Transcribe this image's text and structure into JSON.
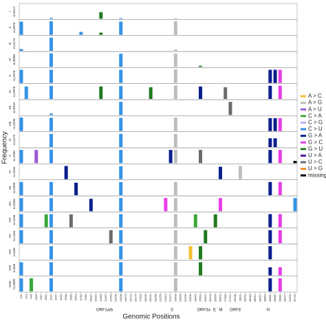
{
  "chart_data": {
    "type": "mutation-panels",
    "xlabel": "Genomic Positions",
    "ylabel": "Frequency",
    "ylim": [
      0,
      1
    ],
    "x": [
      241,
      313,
      445,
      1059,
      1397,
      2891,
      3037,
      3267,
      4002,
      5388,
      5986,
      6954,
      8782,
      9286,
      10097,
      10319,
      11083,
      11287,
      12053,
      13536,
      14408,
      14676,
      15279,
      16176,
      17259,
      18028,
      19542,
      20268,
      21255,
      21614,
      22227,
      23403,
      23604,
      23709,
      24506,
      24642,
      25563,
      25907,
      26144,
      26456,
      26801,
      27389,
      27972,
      28048,
      28111,
      28169,
      28280,
      28512,
      28657,
      28854,
      28881,
      28882,
      28883,
      28977,
      29402,
      29742
    ],
    "genes": [
      "ORF1a/b",
      "S",
      "ORF3a",
      "E",
      "M",
      "ORF8",
      "N"
    ],
    "series": [
      {
        "name": "A > C",
        "color": "#f2c12e"
      },
      {
        "name": "A > G",
        "color": "#bdbdbd"
      },
      {
        "name": "A > U",
        "color": "#9b59d0"
      },
      {
        "name": "C > A",
        "color": "#3aa83a"
      },
      {
        "name": "C > G",
        "color": "#b9b0f0"
      },
      {
        "name": "C > U",
        "color": "#3393e6"
      },
      {
        "name": "G > A",
        "color": "#0b1f8c"
      },
      {
        "name": "G > C",
        "color": "#e83ee8"
      },
      {
        "name": "G > U",
        "color": "#217a21"
      },
      {
        "name": "U > A",
        "color": "#4b1a9e"
      },
      {
        "name": "U > C",
        "color": "#6b6b6b"
      },
      {
        "name": "U > G",
        "color": "#f58a1f"
      },
      {
        "name": "missing",
        "color": "#000000"
      }
    ],
    "panels": [
      {
        "label": "I",
        "n": "n=8117",
        "bars": [
          {
            "pos": 11083,
            "mut": "G > U",
            "value": 0.45
          },
          {
            "pos": 3037,
            "mut": "C > U",
            "value": 0.06
          },
          {
            "pos": 23403,
            "mut": "A > G",
            "value": 0.05
          },
          {
            "pos": 14408,
            "mut": "C > U",
            "value": 0.05
          }
        ]
      },
      {
        "label": "II",
        "n": "n=6976",
        "bars": [
          {
            "pos": 241,
            "mut": "C > U",
            "value": 0.9
          },
          {
            "pos": 3037,
            "mut": "C > U",
            "value": 0.92
          },
          {
            "pos": 14408,
            "mut": "C > U",
            "value": 0.9
          },
          {
            "pos": 23403,
            "mut": "A > G",
            "value": 0.92
          },
          {
            "pos": 11083,
            "mut": "G > U",
            "value": 0.15
          },
          {
            "pos": 8782,
            "mut": "C > U",
            "value": 0.2
          }
        ]
      },
      {
        "label": "III",
        "n": "n=4174",
        "bars": [
          {
            "pos": 3037,
            "mut": "C > U",
            "value": 0.9
          },
          {
            "pos": 241,
            "mut": "C > U",
            "value": 0.12
          },
          {
            "pos": 23403,
            "mut": "A > G",
            "value": 0.1
          }
        ]
      },
      {
        "label": "IV",
        "n": "n=8058",
        "bars": [
          {
            "pos": 3037,
            "mut": "C > U",
            "value": 0.92
          },
          {
            "pos": 14408,
            "mut": "C > U",
            "value": 0.9
          },
          {
            "pos": 23403,
            "mut": "A > G",
            "value": 0.9
          },
          {
            "pos": 25563,
            "mut": "G > U",
            "value": 0.08
          }
        ]
      },
      {
        "label": "V",
        "n": "n=2476",
        "bars": [
          {
            "pos": 241,
            "mut": "C > U",
            "value": 0.9
          },
          {
            "pos": 3037,
            "mut": "C > U",
            "value": 0.9
          },
          {
            "pos": 14408,
            "mut": "C > U",
            "value": 0.9
          },
          {
            "pos": 23403,
            "mut": "A > G",
            "value": 0.92
          },
          {
            "pos": 28881,
            "mut": "G > A",
            "value": 0.9
          },
          {
            "pos": 28882,
            "mut": "G > A",
            "value": 0.9
          },
          {
            "pos": 28883,
            "mut": "G > C",
            "value": 0.9
          }
        ]
      },
      {
        "label": "VI",
        "n": "n=2078",
        "bars": [
          {
            "pos": 313,
            "mut": "C > U",
            "value": 0.85
          },
          {
            "pos": 3037,
            "mut": "C > U",
            "value": 0.9
          },
          {
            "pos": 11083,
            "mut": "G > U",
            "value": 0.85
          },
          {
            "pos": 14408,
            "mut": "C > U",
            "value": 0.88
          },
          {
            "pos": 19542,
            "mut": "G > U",
            "value": 0.8
          },
          {
            "pos": 23403,
            "mut": "A > G",
            "value": 0.92
          },
          {
            "pos": 25563,
            "mut": "G > A",
            "value": 0.85
          },
          {
            "pos": 27389,
            "mut": "U > C",
            "value": 0.8
          },
          {
            "pos": 28881,
            "mut": "G > A",
            "value": 0.9
          },
          {
            "pos": 28883,
            "mut": "G > C",
            "value": 0.9
          }
        ]
      },
      {
        "label": "VII",
        "n": "n=9819",
        "bars": [
          {
            "pos": 14408,
            "mut": "C > U",
            "value": 0.9
          },
          {
            "pos": 27972,
            "mut": "U > C",
            "value": 0.9
          },
          {
            "pos": 3037,
            "mut": "C > U",
            "value": 0.1
          }
        ]
      },
      {
        "label": "VIII",
        "n": "n=3330",
        "bars": [
          {
            "pos": 241,
            "mut": "C > U",
            "value": 0.92
          },
          {
            "pos": 3037,
            "mut": "C > U",
            "value": 0.9
          },
          {
            "pos": 14408,
            "mut": "C > U",
            "value": 0.9
          },
          {
            "pos": 23403,
            "mut": "A > G",
            "value": 0.92
          },
          {
            "pos": 28881,
            "mut": "G > A",
            "value": 0.88
          },
          {
            "pos": 28882,
            "mut": "G > A",
            "value": 0.88
          },
          {
            "pos": 28883,
            "mut": "G > C",
            "value": 0.88
          }
        ]
      },
      {
        "label": "IX",
        "n": "n=4172",
        "bars": [
          {
            "pos": 3037,
            "mut": "C > U",
            "value": 0.9
          },
          {
            "pos": 14408,
            "mut": "C > U",
            "value": 0.9
          },
          {
            "pos": 23403,
            "mut": "A > G",
            "value": 0.9
          },
          {
            "pos": 28881,
            "mut": "G > A",
            "value": 0.6
          },
          {
            "pos": 28882,
            "mut": "G > A",
            "value": 0.6
          }
        ]
      },
      {
        "label": "X",
        "n": "n=1590",
        "bars": [
          {
            "pos": 241,
            "mut": "C > U",
            "value": 0.9
          },
          {
            "pos": 1059,
            "mut": "A > U",
            "value": 0.9
          },
          {
            "pos": 3037,
            "mut": "C > U",
            "value": 0.92
          },
          {
            "pos": 14408,
            "mut": "C > U",
            "value": 0.9
          },
          {
            "pos": 22227,
            "mut": "G > A",
            "value": 0.9
          },
          {
            "pos": 23403,
            "mut": "A > G",
            "value": 0.92
          },
          {
            "pos": 25563,
            "mut": "U > C",
            "value": 0.9
          },
          {
            "pos": 28881,
            "mut": "G > A",
            "value": 0.9
          },
          {
            "pos": 28883,
            "mut": "G > C",
            "value": 0.9
          },
          {
            "pos": 29742,
            "mut": "missing",
            "value": 0.15
          }
        ]
      },
      {
        "label": "XI",
        "n": "n=1842",
        "bars": [
          {
            "pos": 5388,
            "mut": "G > A",
            "value": 0.9
          },
          {
            "pos": 14408,
            "mut": "C > U",
            "value": 0.88
          },
          {
            "pos": 26801,
            "mut": "G > A",
            "value": 0.85
          },
          {
            "pos": 28111,
            "mut": "A > G",
            "value": 0.9
          }
        ]
      },
      {
        "label": "XII",
        "n": "n=3300",
        "bars": [
          {
            "pos": 241,
            "mut": "C > U",
            "value": 0.9
          },
          {
            "pos": 3037,
            "mut": "C > U",
            "value": 0.9
          },
          {
            "pos": 6954,
            "mut": "G > A",
            "value": 0.85
          },
          {
            "pos": 14408,
            "mut": "C > U",
            "value": 0.9
          },
          {
            "pos": 23403,
            "mut": "A > G",
            "value": 0.9
          },
          {
            "pos": 28881,
            "mut": "G > A",
            "value": 0.9
          },
          {
            "pos": 28883,
            "mut": "G > C",
            "value": 0.9
          }
        ]
      },
      {
        "label": "XIII",
        "n": "n=2566",
        "bars": [
          {
            "pos": 241,
            "mut": "C > U",
            "value": 0.9
          },
          {
            "pos": 3037,
            "mut": "C > U",
            "value": 0.9
          },
          {
            "pos": 10097,
            "mut": "G > A",
            "value": 0.85
          },
          {
            "pos": 14408,
            "mut": "C > U",
            "value": 0.9
          },
          {
            "pos": 21614,
            "mut": "G > C",
            "value": 0.9
          },
          {
            "pos": 23403,
            "mut": "A > G",
            "value": 0.9
          },
          {
            "pos": 26801,
            "mut": "G > C",
            "value": 0.9
          },
          {
            "pos": 29742,
            "mut": "C > U",
            "value": 0.9
          }
        ]
      },
      {
        "label": "XIV",
        "n": "n=1156",
        "bars": [
          {
            "pos": 241,
            "mut": "C > U",
            "value": 0.9
          },
          {
            "pos": 2891,
            "mut": "C > A",
            "value": 0.88
          },
          {
            "pos": 3037,
            "mut": "C > U",
            "value": 0.9
          },
          {
            "pos": 5986,
            "mut": "U > C",
            "value": 0.88
          },
          {
            "pos": 14408,
            "mut": "C > U",
            "value": 0.9
          },
          {
            "pos": 23403,
            "mut": "A > G",
            "value": 0.9
          },
          {
            "pos": 24642,
            "mut": "C > A",
            "value": 0.88
          },
          {
            "pos": 26456,
            "mut": "G > U",
            "value": 0.88
          },
          {
            "pos": 28881,
            "mut": "G > A",
            "value": 0.9
          },
          {
            "pos": 28883,
            "mut": "G > C",
            "value": 0.9
          }
        ]
      },
      {
        "label": "XV",
        "n": "n=1445",
        "bars": [
          {
            "pos": 241,
            "mut": "C > U",
            "value": 0.9
          },
          {
            "pos": 3037,
            "mut": "C > U",
            "value": 0.9
          },
          {
            "pos": 12053,
            "mut": "U > C",
            "value": 0.9
          },
          {
            "pos": 14408,
            "mut": "C > U",
            "value": 0.9
          },
          {
            "pos": 23403,
            "mut": "A > G",
            "value": 0.9
          },
          {
            "pos": 25907,
            "mut": "G > U",
            "value": 0.9
          },
          {
            "pos": 28281,
            "mut": "A > U",
            "value": 0.0
          },
          {
            "pos": 28881,
            "mut": "G > A",
            "value": 0.9
          },
          {
            "pos": 28883,
            "mut": "G > C",
            "value": 0.9
          }
        ]
      },
      {
        "label": "XVI",
        "n": "n=846",
        "bars": [
          {
            "pos": 3037,
            "mut": "C > U",
            "value": 0.9
          },
          {
            "pos": 14408,
            "mut": "C > U",
            "value": 0.9
          },
          {
            "pos": 23403,
            "mut": "A > G",
            "value": 0.9
          },
          {
            "pos": 24506,
            "mut": "A > C",
            "value": 0.9
          },
          {
            "pos": 25563,
            "mut": "G > U",
            "value": 0.9
          },
          {
            "pos": 28881,
            "mut": "G > A",
            "value": 0.9
          }
        ]
      },
      {
        "label": "XVII",
        "n": "n=846",
        "bars": [
          {
            "pos": 241,
            "mut": "C > U",
            "value": 0.9
          },
          {
            "pos": 3037,
            "mut": "C > U",
            "value": 0.9
          },
          {
            "pos": 14408,
            "mut": "C > U",
            "value": 0.9
          },
          {
            "pos": 23403,
            "mut": "A > G",
            "value": 0.9
          },
          {
            "pos": 25563,
            "mut": "G > U",
            "value": 0.9
          },
          {
            "pos": 28881,
            "mut": "G > A",
            "value": 0.55
          },
          {
            "pos": 28883,
            "mut": "G > C",
            "value": 0.55
          }
        ]
      },
      {
        "label": "XVIII",
        "n": "n=2080",
        "bars": [
          {
            "pos": 241,
            "mut": "C > U",
            "value": 0.9
          },
          {
            "pos": 445,
            "mut": "C > A",
            "value": 0.9
          },
          {
            "pos": 3037,
            "mut": "C > U",
            "value": 0.9
          },
          {
            "pos": 14408,
            "mut": "C > U",
            "value": 0.9
          },
          {
            "pos": 23403,
            "mut": "A > G",
            "value": 0.9
          },
          {
            "pos": 28881,
            "mut": "G > A",
            "value": 0.9
          },
          {
            "pos": 28883,
            "mut": "G > C",
            "value": 0.9
          }
        ]
      }
    ]
  }
}
